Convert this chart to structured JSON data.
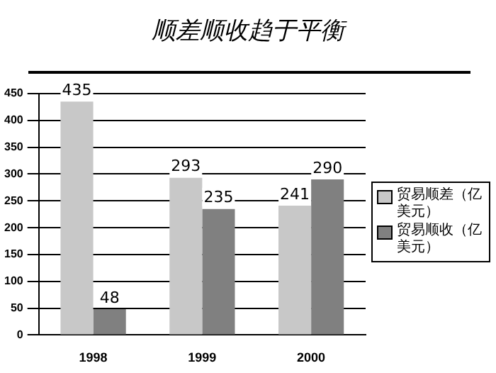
{
  "chart_data": {
    "type": "bar",
    "title": "顺差顺收趋于平衡",
    "categories": [
      "1998",
      "1999",
      "2000"
    ],
    "series": [
      {
        "name": "贸易顺差（亿美元）",
        "color": "#c8c8c8",
        "values": [
          435,
          293,
          241
        ]
      },
      {
        "name": "贸易顺收（亿美元）",
        "color": "#808080",
        "values": [
          48,
          235,
          290
        ]
      }
    ],
    "ylim": [
      0,
      450
    ],
    "yticks": [
      0,
      50,
      100,
      150,
      200,
      250,
      300,
      350,
      400,
      450
    ],
    "grid": "y",
    "legend": "right",
    "data_labels": true
  }
}
